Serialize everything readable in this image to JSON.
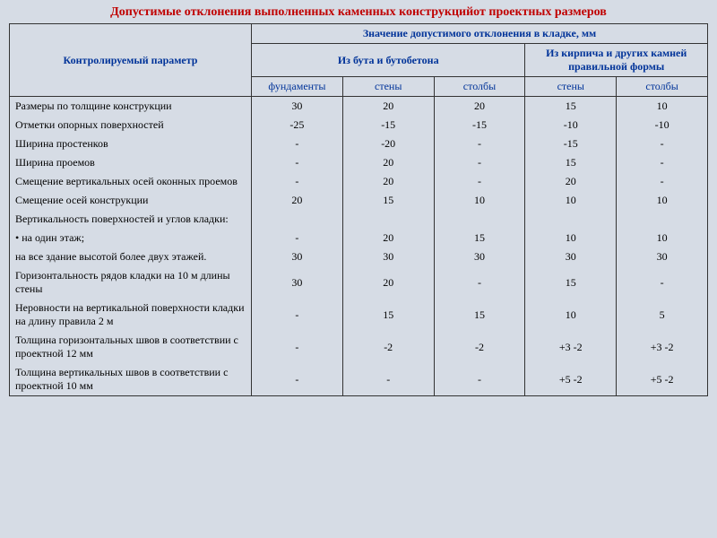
{
  "title": "Допустимые отклонения выполненных каменных конструкцийот проектных размеров",
  "header": {
    "param": "Контролируемый параметр",
    "main": "Значение допустимого отклонения в кладке, мм",
    "group1": "Из бута и бутобетона",
    "group2": "Из кирпича и других камней правильной формы",
    "c1": "фундаменты",
    "c2": "стены",
    "c3": "столбы",
    "c4": "стены",
    "c5": "столбы"
  },
  "rows": [
    {
      "p": "Размеры по толщине конструкции",
      "v": [
        "30",
        "20",
        "20",
        "15",
        "10"
      ]
    },
    {
      "p": "Отметки опорных поверхностей",
      "v": [
        "-25",
        "-15",
        "-15",
        "-10",
        "-10"
      ]
    },
    {
      "p": "Ширина простенков",
      "v": [
        "-",
        "-20",
        "-",
        "-15",
        "-"
      ]
    },
    {
      "p": "Ширина проемов",
      "v": [
        "-",
        "20",
        "-",
        "15",
        "-"
      ]
    },
    {
      "p": "Смещение вертикальных осей  оконных проемов",
      "v": [
        "-",
        "20",
        "-",
        "20",
        "-"
      ]
    },
    {
      "p": "Смещение осей конструкции",
      "v": [
        "20",
        "15",
        "10",
        "10",
        "10"
      ]
    },
    {
      "p": "Вертикальность поверхностей и углов кладки:",
      "v": [
        "",
        "",
        "",
        "",
        ""
      ]
    },
    {
      "p": "•  на один этаж;",
      "v": [
        "-",
        "20",
        "15",
        "10",
        "10"
      ]
    },
    {
      "p": "   на все здание высотой более двух этажей.",
      "v": [
        "30",
        "30",
        "30",
        "30",
        "30"
      ]
    },
    {
      "p": "Горизонтальность рядов кладки на 10 м длины стены",
      "v": [
        "30",
        "20",
        "-",
        "15",
        "-"
      ]
    },
    {
      "p": "Неровности на вертикальной поверхности кладки на длину правила 2 м",
      "v": [
        "-",
        "15",
        "15",
        "10",
        "5"
      ]
    },
    {
      "p": "Толщина горизонтальных швов в соответствии с проектной 12 мм",
      "v": [
        "-",
        "-2",
        "-2",
        "+3 -2",
        "+3 -2"
      ]
    },
    {
      "p": "Толщина вертикальных швов в соответствии с проектной 10 мм",
      "v": [
        "-",
        "-",
        "-",
        "+5 -2",
        "+5 -2"
      ]
    }
  ],
  "style": {
    "title_color": "#c00000",
    "header_color": "#003399",
    "bg": "#d6dce5",
    "border": "#333333",
    "font": "Times New Roman"
  }
}
